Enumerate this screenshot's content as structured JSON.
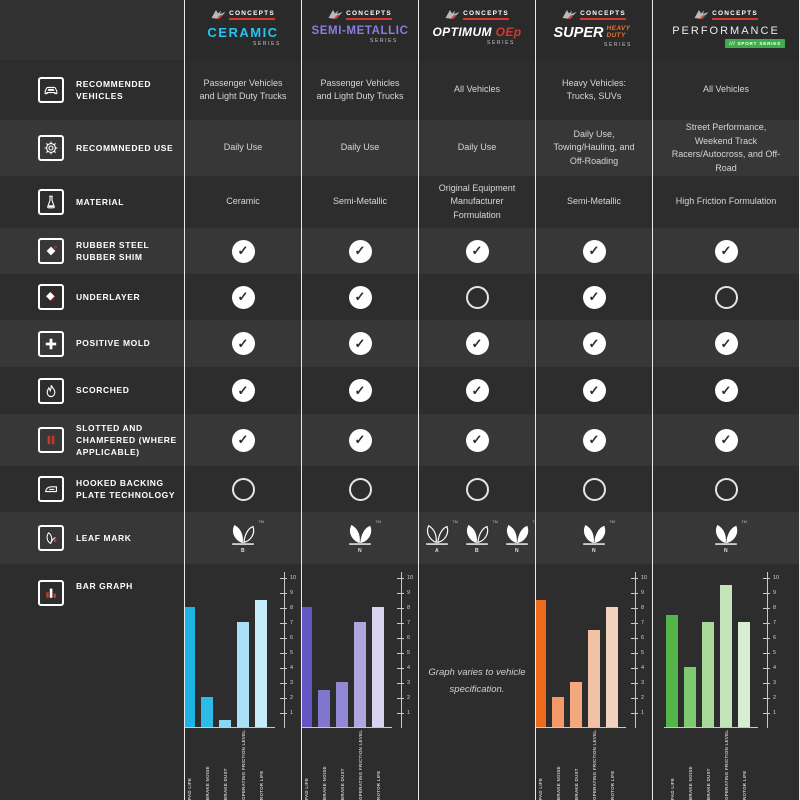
{
  "brand": {
    "logo_text": "CONCEPTS",
    "red": "#d6382e"
  },
  "glyphs": {
    "check": "✓",
    "tm": "TM"
  },
  "columns": [
    {
      "id": "ceramic",
      "series_name": "CERAMIC",
      "series_sub": "SERIES",
      "accent": "#29c3f0"
    },
    {
      "id": "semi-metallic",
      "series_name": "SEMI-METALLIC",
      "series_sub": "SERIES",
      "accent": "#8b7ce0"
    },
    {
      "id": "optimum-oep",
      "series_name": "OPTIMUM",
      "series_name_accent": "OEp",
      "series_sub": "SERIES",
      "accent": "#d6382e"
    },
    {
      "id": "super-heavy-duty",
      "series_name": "SUPER",
      "series_name_accent": "HEAVY DUTY",
      "series_sub": "SERIES",
      "accent": "#f26f21"
    },
    {
      "id": "performance",
      "series_name": "PERFORMANCE",
      "badge_slashes": "///",
      "badge_text": "SPORT SERIES",
      "accent": "#3eae4b"
    }
  ],
  "features": [
    {
      "label": "RECOMMENDED VEHICLES",
      "icon": "car-icon",
      "type": "text",
      "cells": [
        "Passenger Vehicles and Light Duty Trucks",
        "Passenger Vehicles and Light Duty Trucks",
        "All Vehicles",
        "Heavy Vehicles: Trucks, SUVs",
        "All Vehicles"
      ]
    },
    {
      "label": "RECOMMNEDED USE",
      "icon": "gear-icon",
      "type": "text",
      "cells": [
        "Daily Use",
        "Daily Use",
        "Daily Use",
        "Daily Use, Towing/Hauling, and Off-Roading",
        "Street Performance, Weekend Track Racers/Autocross, and Off-Road"
      ]
    },
    {
      "label": "MATERIAL",
      "icon": "flask-icon",
      "type": "text",
      "cells": [
        "Ceramic",
        "Semi-Metallic",
        "Original Equipment Manufacturer Formulation",
        "Semi-Metallic",
        "High Friction Formulation"
      ]
    },
    {
      "label": "RUBBER STEEL RUBBER SHIM",
      "icon": "shim-layers-icon",
      "type": "check",
      "cells": [
        true,
        true,
        true,
        true,
        true
      ]
    },
    {
      "label": "UNDERLAYER",
      "icon": "underlayer-icon",
      "type": "check",
      "cells": [
        true,
        true,
        false,
        true,
        false
      ]
    },
    {
      "label": "POSITIVE MOLD",
      "icon": "positive-mold-icon",
      "type": "check",
      "cells": [
        true,
        true,
        true,
        true,
        true
      ]
    },
    {
      "label": "SCORCHED",
      "icon": "flame-icon",
      "type": "check",
      "cells": [
        true,
        true,
        true,
        true,
        true
      ]
    },
    {
      "label": "SLOTTED AND CHAMFERED (WHERE APPLICABLE)",
      "icon": "slotted-icon",
      "type": "check",
      "cells": [
        true,
        true,
        true,
        true,
        true
      ]
    },
    {
      "label": "HOOKED BACKING PLATE TECHNOLOGY",
      "icon": "backing-plate-icon",
      "type": "check",
      "cells": [
        false,
        false,
        false,
        false,
        false
      ]
    },
    {
      "label": "LEAF MARK",
      "icon": "leaf-icon",
      "type": "leaf",
      "cells": [
        [
          {
            "letter": "B",
            "variant": "half"
          }
        ],
        [
          {
            "letter": "N",
            "variant": "filled"
          }
        ],
        [
          {
            "letter": "A",
            "variant": "outline"
          },
          {
            "letter": "B",
            "variant": "half"
          },
          {
            "letter": "N",
            "variant": "filled"
          }
        ],
        [
          {
            "letter": "N",
            "variant": "filled"
          }
        ],
        [
          {
            "letter": "N",
            "variant": "filled"
          }
        ]
      ]
    },
    {
      "label": "BAR GRAPH",
      "icon": "bar-graph-icon",
      "type": "chart",
      "cells": [
        null,
        null,
        null,
        null,
        null
      ]
    }
  ],
  "chart_data": {
    "type": "bar",
    "categories": [
      "PAD LIFE",
      "BRAKE NOISE",
      "BRAKE DUST",
      "OPERATING FRICTION LEVEL",
      "ROTOR LIFE"
    ],
    "ylim": [
      0,
      10
    ],
    "yticks": [
      1,
      2,
      3,
      4,
      5,
      6,
      7,
      8,
      9,
      10
    ],
    "grid": false,
    "series": [
      {
        "name": "Ceramic Series",
        "values": [
          8,
          2,
          0.5,
          7,
          8.5
        ],
        "colors": [
          "#1db4e4",
          "#2dbce7",
          "#8ad5f0",
          "#a9e0f5",
          "#c6ebf9"
        ]
      },
      {
        "name": "Semi-Metallic Series",
        "values": [
          8,
          2.5,
          3,
          7,
          8
        ],
        "colors": [
          "#6355c2",
          "#8176ce",
          "#9289d4",
          "#afa7df",
          "#d8d4ef"
        ]
      },
      {
        "name": "Optimum OEp Series",
        "values": null,
        "note": "Graph varies to vehicle specification."
      },
      {
        "name": "Super Heavy Duty Series",
        "values": [
          8.5,
          2,
          3,
          6.5,
          8
        ],
        "colors": [
          "#f06a1d",
          "#f4996a",
          "#f3a87e",
          "#f2c2a4",
          "#f1d2bf"
        ]
      },
      {
        "name": "Performance Sport Series",
        "values": [
          7.5,
          4,
          7,
          9.5,
          7
        ],
        "colors": [
          "#55b54a",
          "#7fc971",
          "#a8d99b",
          "#c3e4b9",
          "#d7edd2"
        ]
      }
    ]
  }
}
